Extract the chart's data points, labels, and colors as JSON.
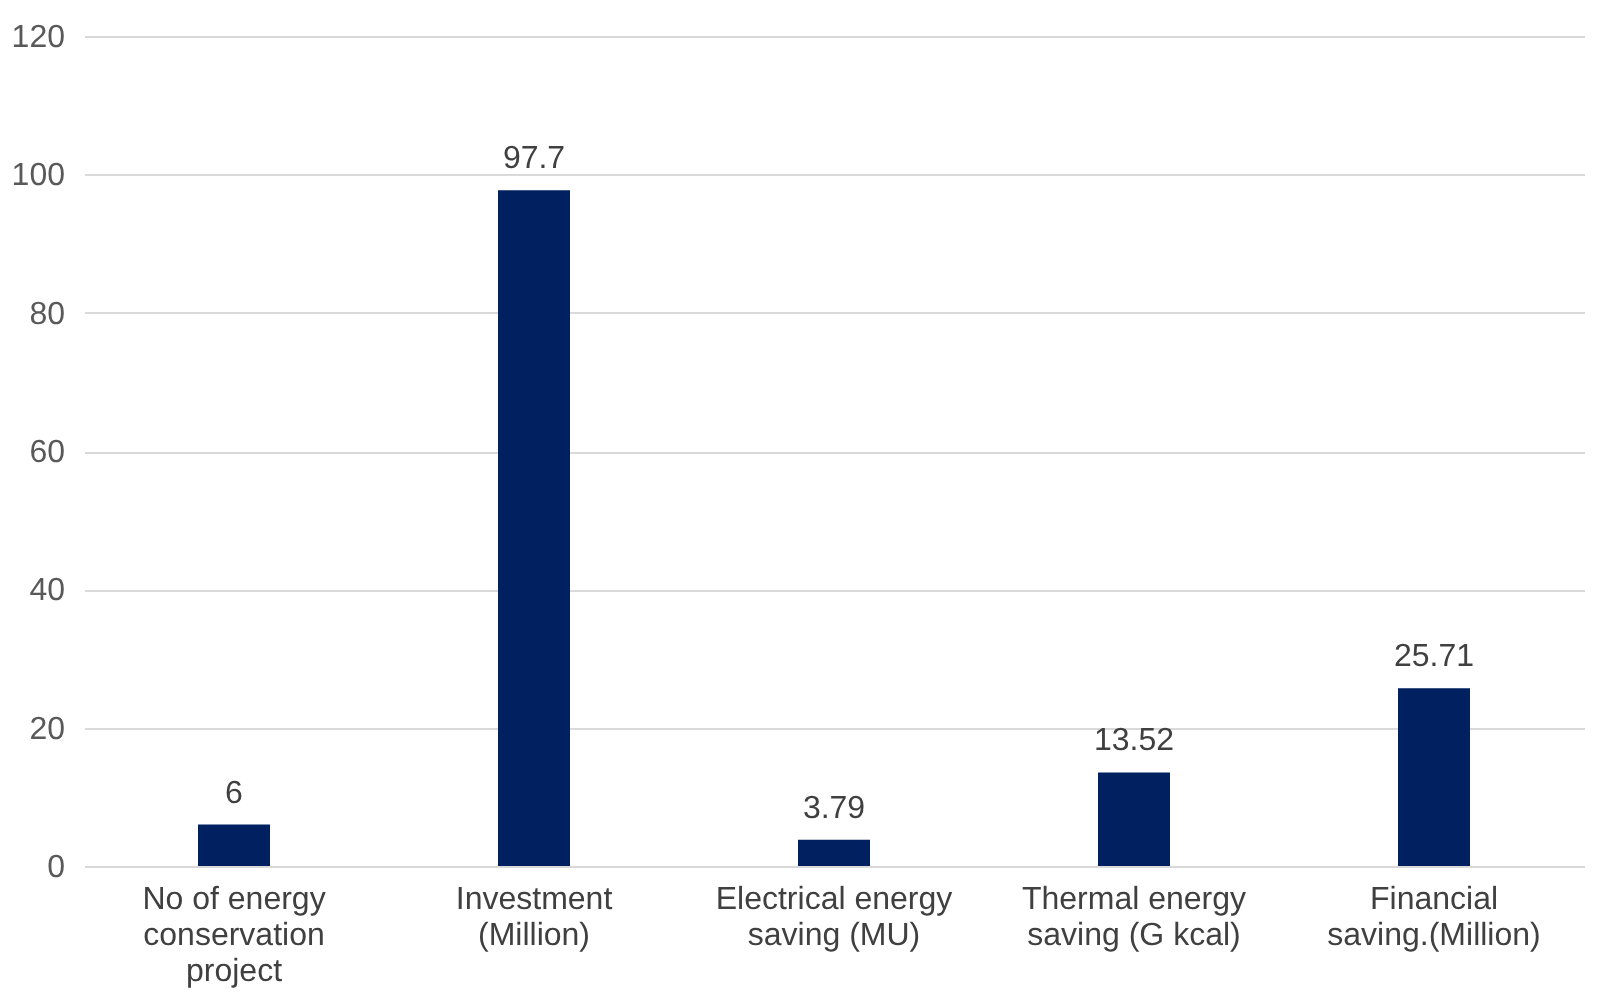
{
  "chart_data": {
    "type": "bar",
    "categories": [
      "No of energy conservation project",
      "Investment (Million)",
      "Electrical energy saving (MU)",
      "Thermal energy saving (G kcal)",
      "Financial saving.(Million)"
    ],
    "values": [
      6,
      97.7,
      3.79,
      13.52,
      25.71
    ],
    "color": "#002060",
    "ylim": [
      0,
      120
    ],
    "yticks": [
      0,
      20,
      40,
      60,
      80,
      100,
      120
    ],
    "grid": "y",
    "data_labels": true
  }
}
